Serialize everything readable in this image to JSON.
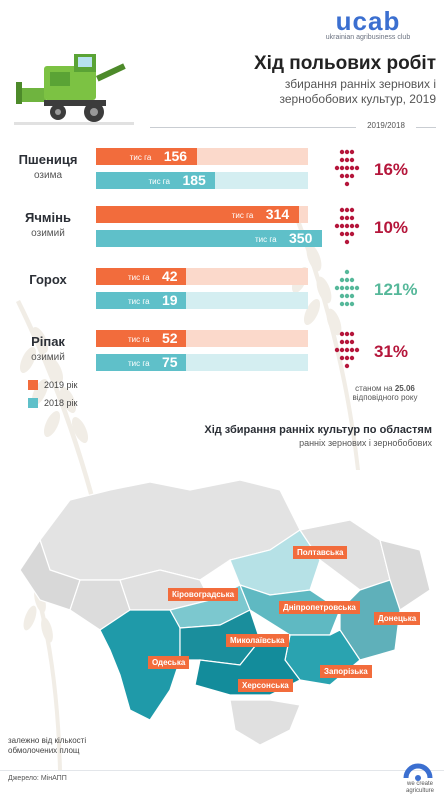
{
  "brand": {
    "logo": "ucab",
    "tagline": "ukrainian agribusiness club"
  },
  "header": {
    "title": "Хід польових робіт",
    "subtitle_line1": "збирання ранніх зернових і",
    "subtitle_line2": "зернобобових культур, 2019",
    "period": "2019/2018"
  },
  "colors": {
    "y2019": "#f26c3c",
    "y2018": "#5fc0c9",
    "down": "#b5163b",
    "up": "#56b89a"
  },
  "chart_data": {
    "type": "bar",
    "unit": "тис га",
    "categories": [
      "Пшениця",
      "Ячмінь",
      "Горох",
      "Ріпак"
    ],
    "category_subtitles": [
      "озима",
      "озимий",
      "",
      "озимий"
    ],
    "series": [
      {
        "name": "2019 рік",
        "values": [
          156,
          314,
          42,
          52
        ]
      },
      {
        "name": "2018 рік",
        "values": [
          185,
          350,
          19,
          75
        ]
      }
    ],
    "changes": [
      {
        "direction": "down",
        "label": "16%"
      },
      {
        "direction": "down",
        "label": "10%"
      },
      {
        "direction": "up",
        "label": "121%"
      },
      {
        "direction": "down",
        "label": "31%"
      }
    ]
  },
  "legend": {
    "y2019": "2019 рік",
    "y2018": "2018 рік"
  },
  "asof": {
    "line1_prefix": "станом на ",
    "line1_date": "25.06",
    "line2": "відповідного року"
  },
  "map": {
    "title": "Хід збирання ранніх культур по областям",
    "subtitle": "ранніх зернових і зернобобових",
    "regions": [
      "Полтавська",
      "Кіровоградська",
      "Дніпропетровська",
      "Донецька",
      "Миколаївська",
      "Одеська",
      "Херсонська",
      "Запорізька"
    ],
    "legend_line1": "залежно від кількості",
    "legend_line2": "обмолочених площ"
  },
  "footer": {
    "source": "Джерело: МінАПП",
    "slogan_line1": "we create",
    "slogan_line2": "agriculture"
  }
}
